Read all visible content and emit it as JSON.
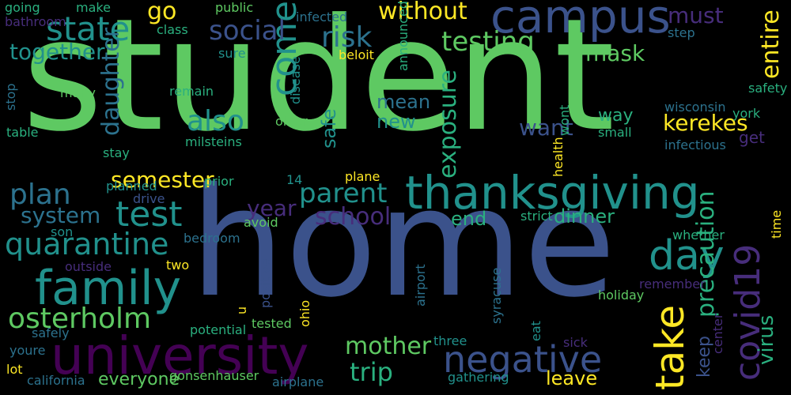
{
  "words": [
    {
      "key": "student",
      "text": "student",
      "color": "#5ec962"
    },
    {
      "key": "home",
      "text": "home",
      "color": "#3b528b"
    },
    {
      "key": "university",
      "text": "university",
      "color": "#440154"
    },
    {
      "key": "thanksgiving",
      "text": "thanksgiving",
      "color": "#21918c"
    },
    {
      "key": "campus",
      "text": "campus",
      "color": "#3b528b"
    },
    {
      "key": "family",
      "text": "family",
      "color": "#21918c"
    },
    {
      "key": "test",
      "text": "test",
      "color": "#21918c"
    },
    {
      "key": "testing",
      "text": "testing",
      "color": "#5ec962"
    },
    {
      "key": "state",
      "text": "state",
      "color": "#21918c"
    },
    {
      "key": "quarantine",
      "text": "quarantine",
      "color": "#21918c"
    },
    {
      "key": "plan",
      "text": "plan",
      "color": "#2c728e"
    },
    {
      "key": "osterholm",
      "text": "osterholm",
      "color": "#5ec962"
    },
    {
      "key": "negative",
      "text": "negative",
      "color": "#3b528b"
    },
    {
      "key": "day",
      "text": "day",
      "color": "#21918c"
    },
    {
      "key": "take",
      "text": "take",
      "color": "#fde725"
    },
    {
      "key": "covid19",
      "text": "covid19",
      "color": "#472d7b"
    },
    {
      "key": "come",
      "text": "come",
      "color": "#21918c"
    },
    {
      "key": "mother",
      "text": "mother",
      "color": "#5ec962"
    },
    {
      "key": "trip",
      "text": "trip",
      "color": "#2ab07f"
    },
    {
      "key": "parent",
      "text": "parent",
      "color": "#21918c"
    },
    {
      "key": "school",
      "text": "school",
      "color": "#472d7b"
    },
    {
      "key": "system",
      "text": "system",
      "color": "#2c728e"
    },
    {
      "key": "risk",
      "text": "risk",
      "color": "#2c728e"
    },
    {
      "key": "without",
      "text": "without",
      "color": "#fde725"
    },
    {
      "key": "also",
      "text": "also",
      "color": "#21918c"
    },
    {
      "key": "social",
      "text": "social",
      "color": "#2c728e"
    },
    {
      "key": "go",
      "text": "go",
      "color": "#3b528b"
    },
    {
      "key": "must",
      "text": "must",
      "color": "#fde725"
    },
    {
      "key": "mask",
      "text": "mask",
      "color": "#472d7b"
    },
    {
      "key": "want",
      "text": "want",
      "color": "#fde725"
    },
    {
      "key": "kerekes",
      "text": "kerekes",
      "color": "#5ec962"
    },
    {
      "key": "semester",
      "text": "semester",
      "color": "#2ab07f"
    },
    {
      "key": "year",
      "text": "year",
      "color": "#2ab07f"
    },
    {
      "key": "together",
      "text": "together",
      "color": "#2ab07f"
    },
    {
      "key": "mean",
      "text": "mean",
      "color": "#3b528b"
    },
    {
      "key": "new",
      "text": "new",
      "color": "#fde725"
    },
    {
      "key": "dinner",
      "text": "dinner",
      "color": "#fde725"
    },
    {
      "key": "end",
      "text": "end",
      "color": "#472d7b"
    },
    {
      "key": "leave",
      "text": "leave",
      "color": "#21918c"
    },
    {
      "key": "everyone",
      "text": "everyone",
      "color": "#21918c"
    },
    {
      "key": "way",
      "text": "way",
      "color": "#2c728e"
    },
    {
      "key": "get",
      "text": "get",
      "color": "#21918c"
    },
    {
      "key": "daughter",
      "text": "daughter",
      "color": "#2ab07f"
    },
    {
      "key": "entire",
      "text": "entire",
      "color": "#2ab07f"
    },
    {
      "key": "exposure",
      "text": "exposure",
      "color": "#3b528b"
    },
    {
      "key": "precaution",
      "text": "precaution",
      "color": "#fde725"
    },
    {
      "key": "virus",
      "text": "virus",
      "color": "#5ec962"
    },
    {
      "key": "safe",
      "text": "safe",
      "color": "#2ab07f"
    },
    {
      "key": "keep",
      "text": "keep",
      "color": "#472d7b"
    },
    {
      "key": "going",
      "text": "going",
      "color": "#2ab07f"
    },
    {
      "key": "make",
      "text": "make",
      "color": "#fde725"
    },
    {
      "key": "public",
      "text": "public",
      "color": "#2ab07f"
    },
    {
      "key": "infected",
      "text": "infected",
      "color": "#2ab07f"
    },
    {
      "key": "bathroom",
      "text": "bathroom",
      "color": "#5ec962"
    },
    {
      "key": "class",
      "text": "class",
      "color": "#2c728e"
    },
    {
      "key": "sure",
      "text": "sure",
      "color": "#472d7b"
    },
    {
      "key": "beloit",
      "text": "beloit",
      "color": "#2ab07f"
    },
    {
      "key": "step",
      "text": "step",
      "color": "#21918c"
    },
    {
      "key": "safety",
      "text": "safety",
      "color": "#fde725"
    },
    {
      "key": "york",
      "text": "york",
      "color": "#2ab07f"
    },
    {
      "key": "wisconsin",
      "text": "wisconsin",
      "color": "#21918c"
    },
    {
      "key": "infectious",
      "text": "infectious",
      "color": "#2c728e"
    },
    {
      "key": "many",
      "text": "many",
      "color": "#2ab07f"
    },
    {
      "key": "remain",
      "text": "remain",
      "color": "#2ab07f"
    },
    {
      "key": "table",
      "text": "table",
      "color": "#2c728e"
    },
    {
      "key": "older",
      "text": "older",
      "color": "#2c728e"
    },
    {
      "key": "milsteins",
      "text": "milsteins",
      "color": "#2ab07f"
    },
    {
      "key": "small",
      "text": "small",
      "color": "#2c728e"
    },
    {
      "key": "stay",
      "text": "stay",
      "color": "#5ec962"
    },
    {
      "key": "planned",
      "text": "planned",
      "color": "#2ab07f"
    },
    {
      "key": "prior",
      "text": "prior",
      "color": "#2ab07f"
    },
    {
      "key": "fourteen",
      "text": "14",
      "color": "#5ec962"
    },
    {
      "key": "plane",
      "text": "plane",
      "color": "#2ab07f"
    },
    {
      "key": "drive",
      "text": "drive",
      "color": "#2ab07f"
    },
    {
      "key": "son",
      "text": "son",
      "color": "#21918c"
    },
    {
      "key": "bedroom",
      "text": "bedroom",
      "color": "#2ab07f"
    },
    {
      "key": "avoid",
      "text": "avoid",
      "color": "#21918c"
    },
    {
      "key": "strict",
      "text": "strict",
      "color": "#fde725"
    },
    {
      "key": "whether",
      "text": "whether",
      "color": "#3b528b"
    },
    {
      "key": "outside",
      "text": "outside",
      "color": "#21918c"
    },
    {
      "key": "two",
      "text": "two",
      "color": "#2c728e"
    },
    {
      "key": "remember",
      "text": "remember",
      "color": "#5ec962"
    },
    {
      "key": "holiday",
      "text": "holiday",
      "color": "#2ab07f"
    },
    {
      "key": "tested",
      "text": "tested",
      "color": "#2ab07f"
    },
    {
      "key": "potential",
      "text": "potential",
      "color": "#fde725"
    },
    {
      "key": "safely",
      "text": "safely",
      "color": "#472d7b"
    },
    {
      "key": "three",
      "text": "three",
      "color": "#fde725"
    },
    {
      "key": "sick",
      "text": "sick",
      "color": "#fde725"
    },
    {
      "key": "youre",
      "text": "youre",
      "color": "#3b528b"
    },
    {
      "key": "lot",
      "text": "lot",
      "color": "#5ec962"
    },
    {
      "key": "california",
      "text": "california",
      "color": "#fde725"
    },
    {
      "key": "gonsenhauser",
      "text": "gonsenhauser",
      "color": "#2c728e"
    },
    {
      "key": "airplane",
      "text": "airplane",
      "color": "#2c728e"
    },
    {
      "key": "gathering",
      "text": "gathering",
      "color": "#21918c"
    },
    {
      "key": "announced",
      "text": "announced",
      "color": "#472d7b"
    },
    {
      "key": "disease",
      "text": "disease",
      "color": "#472d7b"
    },
    {
      "key": "wont",
      "text": "wont",
      "color": "#5ec962"
    },
    {
      "key": "stop",
      "text": "stop",
      "color": "#2ab07f"
    },
    {
      "key": "health",
      "text": "health",
      "color": "#2c728e"
    },
    {
      "key": "time",
      "text": "time",
      "color": "#2c728e"
    },
    {
      "key": "u",
      "text": "u",
      "color": "#fde725"
    },
    {
      "key": "positive",
      "text": "positive",
      "color": "#21918c"
    },
    {
      "key": "ohio",
      "text": "ohio",
      "color": "#472d7b"
    },
    {
      "key": "airport",
      "text": "airport",
      "color": "#2c728e"
    },
    {
      "key": "syracuse",
      "text": "syracuse",
      "color": "#5ec962"
    },
    {
      "key": "eat",
      "text": "eat",
      "color": "#2c728e"
    },
    {
      "key": "center",
      "text": "center",
      "color": "#21918c"
    }
  ]
}
